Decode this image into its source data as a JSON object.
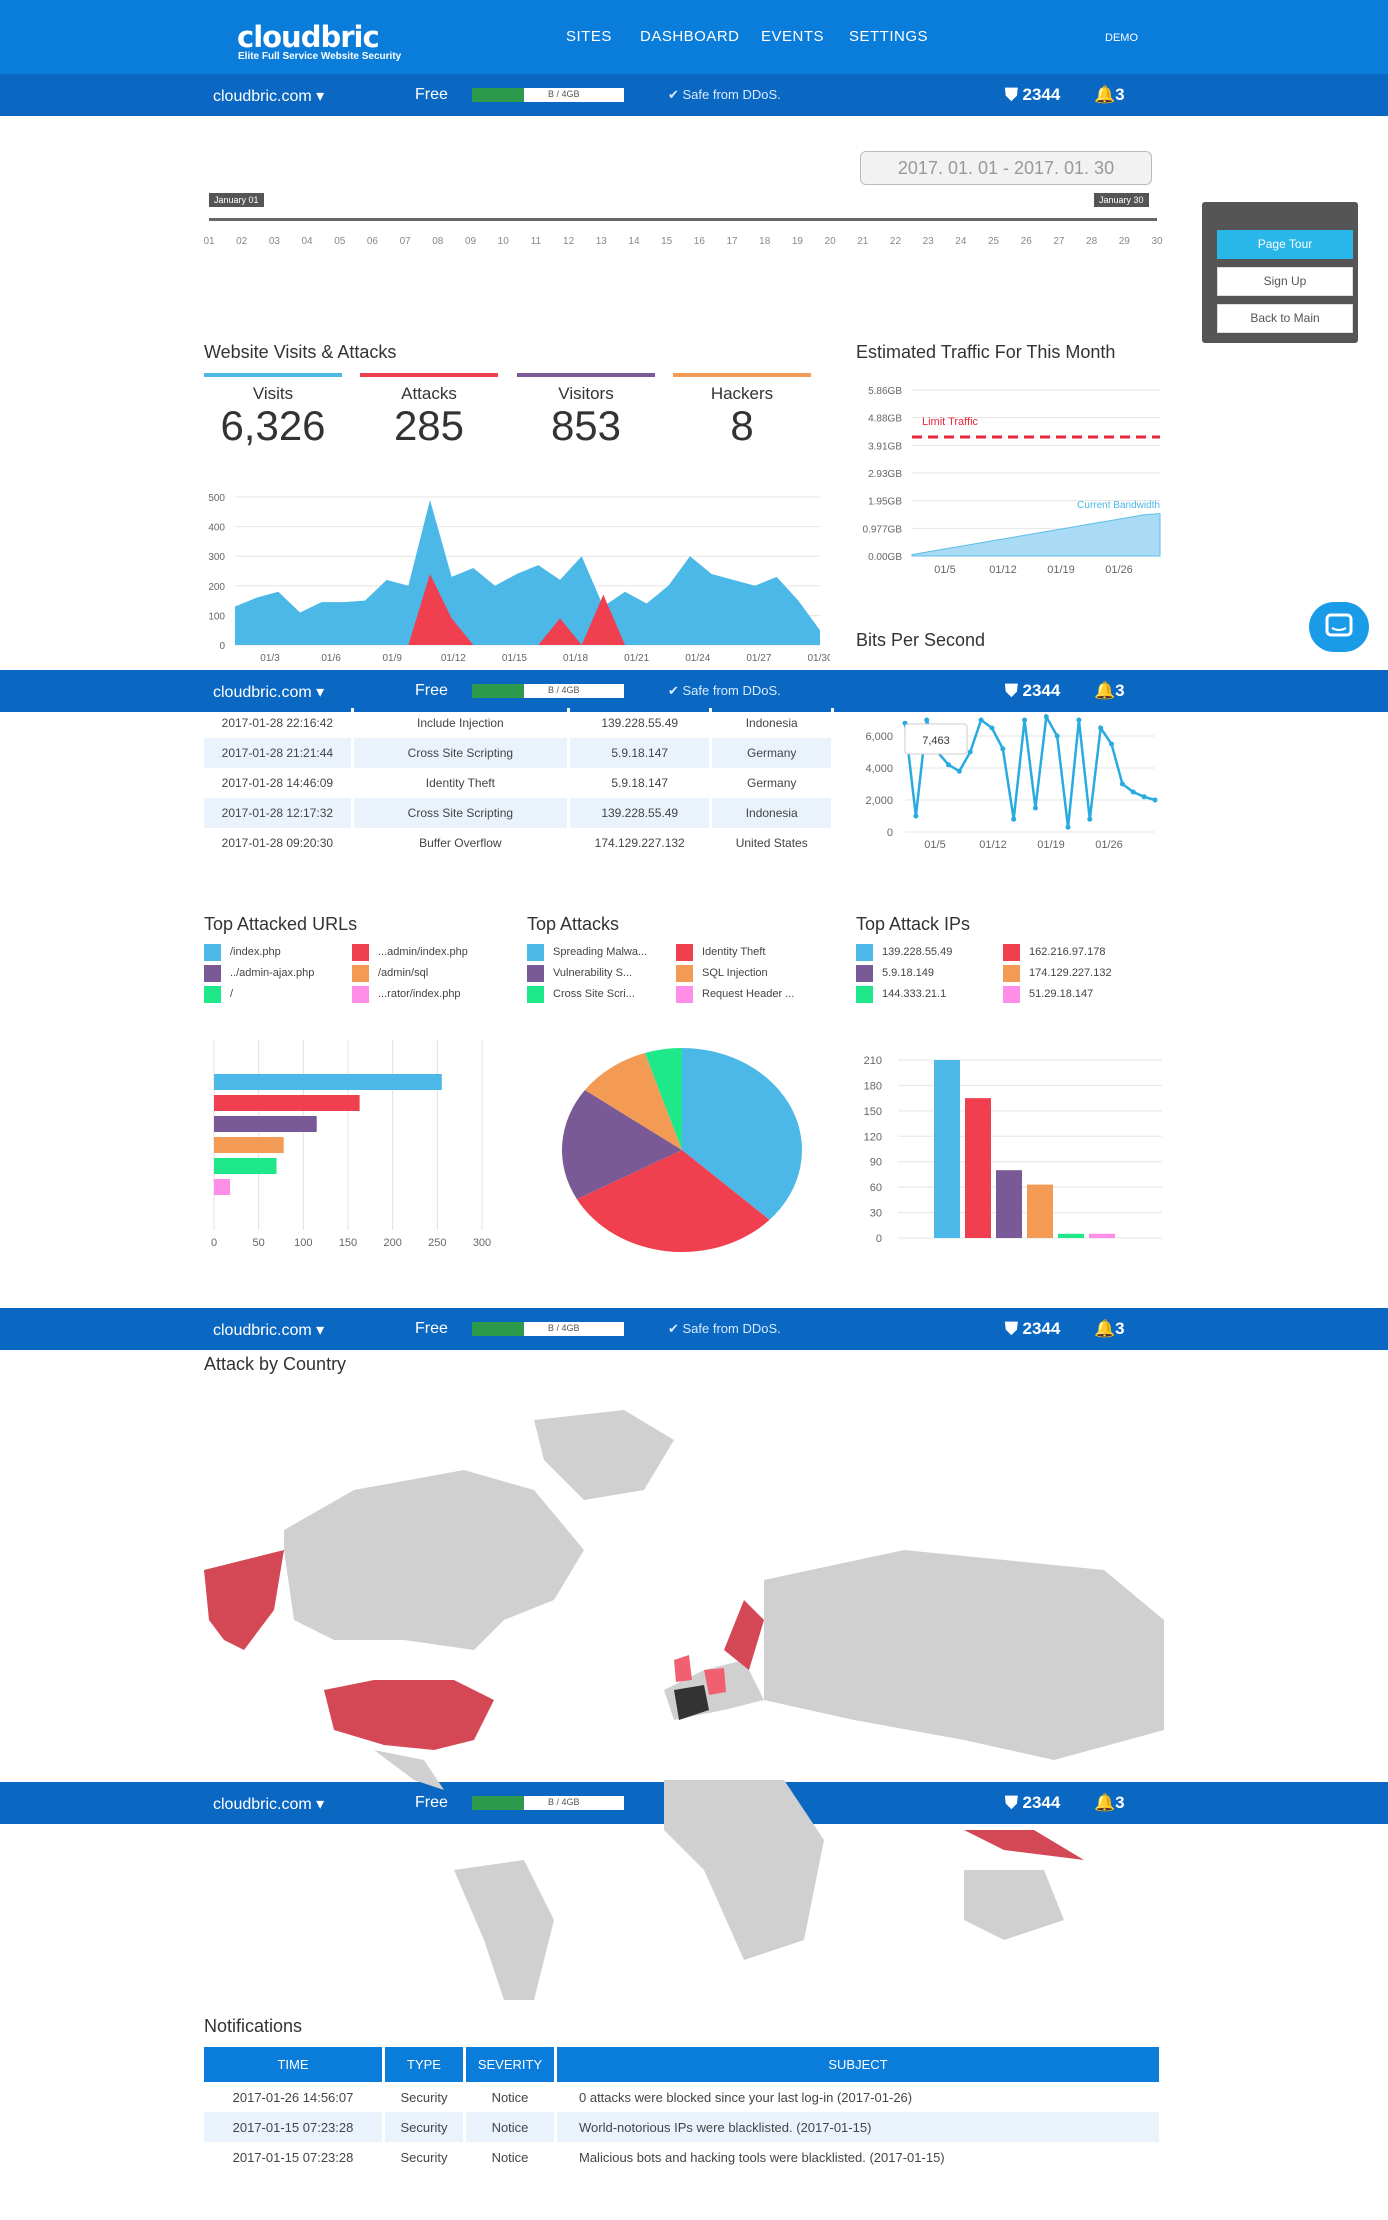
{
  "header": {
    "logo": "cloudbric",
    "tagline": "Elite Full Service Website Security",
    "nav": [
      "SITES",
      "DASHBOARD",
      "EVENTS",
      "SETTINGS"
    ],
    "user": "DEMO"
  },
  "status": {
    "domain": "cloudbric.com ▾",
    "plan": "Free",
    "usage_text": "B / 4GB",
    "usage_fraction": 0.34,
    "safe": "Safe from DDoS.",
    "shield_count": "2344",
    "bell_count": "3"
  },
  "daterange": "2017. 01. 01 - 2017. 01. 30",
  "timeline": {
    "start_flag": "January 01",
    "end_flag": "January 30",
    "ticks": [
      "01",
      "02",
      "03",
      "04",
      "05",
      "06",
      "07",
      "08",
      "09",
      "10",
      "11",
      "12",
      "13",
      "14",
      "15",
      "16",
      "17",
      "18",
      "19",
      "20",
      "21",
      "22",
      "23",
      "24",
      "25",
      "26",
      "27",
      "28",
      "29",
      "30"
    ]
  },
  "sidepanel": {
    "page_tour": "Page Tour",
    "sign_up": "Sign Up",
    "back": "Back to Main"
  },
  "visits_section": {
    "title": "Website Visits & Attacks",
    "metrics": [
      {
        "label": "Visits",
        "value": "6,326",
        "color": "#4bb8e8"
      },
      {
        "label": "Attacks",
        "value": "285",
        "color": "#f0404f"
      },
      {
        "label": "Visitors",
        "value": "853",
        "color": "#7a5a96"
      },
      {
        "label": "Hackers",
        "value": "8",
        "color": "#f39a55"
      }
    ]
  },
  "traffic_title": "Estimated Traffic For This Month",
  "bps_title": "Bits Per Second",
  "chart_data": [
    {
      "type": "area",
      "ylim": [
        0,
        500
      ],
      "yticks": [
        "0",
        "100",
        "200",
        "300",
        "400",
        "500"
      ],
      "xticks": [
        "01/3",
        "01/6",
        "01/9",
        "01/12",
        "01/15",
        "01/18",
        "01/21",
        "01/24",
        "01/27",
        "01/30"
      ],
      "series": [
        {
          "color": "#4bb8e8",
          "values": [
            130,
            160,
            180,
            110,
            145,
            145,
            150,
            220,
            200,
            490,
            230,
            260,
            200,
            240,
            270,
            220,
            300,
            130,
            180,
            140,
            200,
            300,
            240,
            220,
            200,
            230,
            150,
            50
          ]
        },
        {
          "color": "#f0404f",
          "values": [
            0,
            0,
            0,
            0,
            0,
            0,
            0,
            0,
            0,
            240,
            90,
            0,
            0,
            0,
            0,
            90,
            0,
            170,
            0,
            0,
            0,
            0,
            0,
            0,
            0,
            0,
            0,
            0
          ]
        }
      ]
    },
    {
      "type": "area",
      "yticks": [
        "0.00GB",
        "0.977GB",
        "1.95GB",
        "2.93GB",
        "3.91GB",
        "4.88GB",
        "5.86GB"
      ],
      "xticks": [
        "01/5",
        "01/12",
        "01/19",
        "01/26"
      ],
      "limit_label": "Limit Traffic",
      "limit_value": 4.2,
      "bandwidth_label": "Current Bandwidth",
      "values": [
        0.05,
        0.15,
        0.25,
        0.35,
        0.45,
        0.55,
        0.65,
        0.75,
        0.85,
        0.95,
        1.05,
        1.15,
        1.25,
        1.35,
        1.45,
        1.5
      ]
    },
    {
      "type": "line",
      "yticks": [
        "0",
        "2,000",
        "4,000",
        "6,000"
      ],
      "xticks": [
        "01/5",
        "01/12",
        "01/19",
        "01/26"
      ],
      "tooltip": "7,463",
      "values": [
        6800,
        1000,
        7000,
        5000,
        4200,
        3800,
        5000,
        7000,
        6500,
        5200,
        800,
        7000,
        1500,
        7200,
        6000,
        300,
        7000,
        800,
        6500,
        5500,
        3000,
        2500,
        2200,
        2000
      ]
    },
    {
      "type": "bar",
      "orientation": "horizontal",
      "xticks": [
        "0",
        "50",
        "100",
        "150",
        "200",
        "250",
        "300"
      ],
      "values": [
        255,
        163,
        115,
        78,
        70,
        18
      ],
      "colors": [
        "#4bb8e8",
        "#f0404f",
        "#7a5a96",
        "#f39a55",
        "#1ee88a",
        "#ff8ee8"
      ]
    },
    {
      "type": "pie",
      "values": [
        37,
        30,
        18,
        10,
        5
      ],
      "colors": [
        "#4bb8e8",
        "#f0404f",
        "#7a5a96",
        "#f39a55",
        "#1ee88a"
      ]
    },
    {
      "type": "bar",
      "yticks": [
        "0",
        "30",
        "60",
        "90",
        "120",
        "150",
        "180",
        "210"
      ],
      "values": [
        210,
        165,
        80,
        63,
        5,
        5
      ],
      "colors": [
        "#4bb8e8",
        "#f0404f",
        "#7a5a96",
        "#f39a55",
        "#1ee88a",
        "#ff8ee8"
      ]
    }
  ],
  "attack_log": [
    {
      "time": "2017-01-28 22:16:42",
      "type": "Include Injection",
      "ip": "139.228.55.49",
      "country": "Indonesia"
    },
    {
      "time": "2017-01-28 21:21:44",
      "type": "Cross Site Scripting",
      "ip": "5.9.18.147",
      "country": "Germany"
    },
    {
      "time": "2017-01-28 14:46:09",
      "type": "Identity Theft",
      "ip": "5.9.18.147",
      "country": "Germany"
    },
    {
      "time": "2017-01-28 12:17:32",
      "type": "Cross Site Scripting",
      "ip": "139.228.55.49",
      "country": "Indonesia"
    },
    {
      "time": "2017-01-28 09:20:30",
      "type": "Buffer Overflow",
      "ip": "174.129.227.132",
      "country": "United States"
    }
  ],
  "top_urls": {
    "title": "Top Attacked URLs",
    "items": [
      "/index.php",
      "../admin-ajax.php",
      "/",
      "...admin/index.php",
      "/admin/sql",
      "...rator/index.php"
    ]
  },
  "top_attacks": {
    "title": "Top Attacks",
    "items": [
      "Spreading Malwa...",
      "Vulnerability S...",
      "Cross Site Scri...",
      "Identity Theft",
      "SQL Injection",
      "Request Header ..."
    ]
  },
  "top_ips": {
    "title": "Top Attack IPs",
    "items": [
      "139.228.55.49",
      "5.9.18.149",
      "144.333.21.1",
      "162.216.97.178",
      "174.129.227.132",
      "51.29.18.147"
    ]
  },
  "country_title": "Attack by Country",
  "notifications": {
    "title": "Notifications",
    "headers": [
      "TIME",
      "TYPE",
      "SEVERITY",
      "SUBJECT"
    ],
    "rows": [
      {
        "time": "2017-01-26 14:56:07",
        "type": "Security",
        "severity": "Notice",
        "subject": "0 attacks were blocked since your last log-in (2017-01-26)"
      },
      {
        "time": "2017-01-15 07:23:28",
        "type": "Security",
        "severity": "Notice",
        "subject": "World-notorious IPs were blacklisted. (2017-01-15)"
      },
      {
        "time": "2017-01-15 07:23:28",
        "type": "Security",
        "severity": "Notice",
        "subject": "Malicious bots and hacking tools were blacklisted. (2017-01-15)"
      }
    ]
  }
}
